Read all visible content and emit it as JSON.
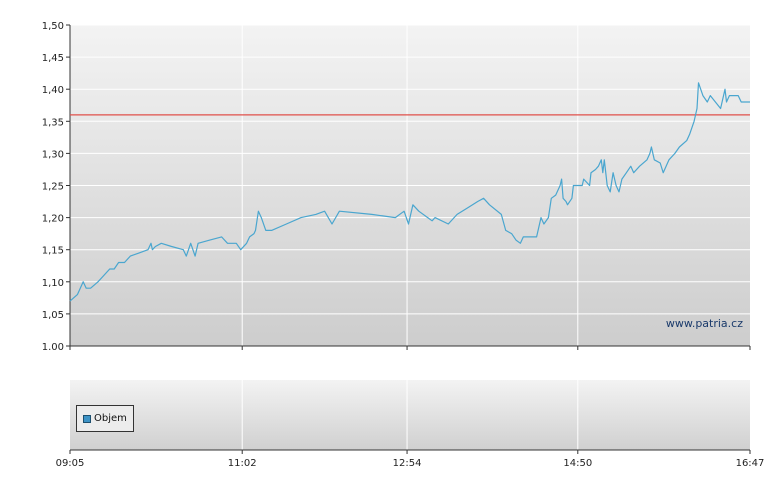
{
  "chart_data": [
    {
      "type": "line",
      "ylim": [
        1.0,
        1.5
      ],
      "yticks": [
        "1.00",
        "1,05",
        "1,10",
        "1,15",
        "1,20",
        "1,25",
        "1,30",
        "1,35",
        "1,40",
        "1,45",
        "1,50"
      ],
      "xticks": [
        "09:05",
        "11:02",
        "12:54",
        "14:50",
        "16:47"
      ],
      "grid": true,
      "watermark": "www.patria.cz",
      "reference_line": {
        "value": 1.36,
        "color": "#e0514a"
      },
      "series": [
        {
          "color": "#4aa6cf",
          "points": [
            [
              "09:05",
              1.07
            ],
            [
              "09:10",
              1.08
            ],
            [
              "09:14",
              1.1
            ],
            [
              "09:16",
              1.09
            ],
            [
              "09:19",
              1.09
            ],
            [
              "09:24",
              1.1
            ],
            [
              "09:28",
              1.11
            ],
            [
              "09:32",
              1.12
            ],
            [
              "09:35",
              1.12
            ],
            [
              "09:38",
              1.13
            ],
            [
              "09:42",
              1.13
            ],
            [
              "09:46",
              1.14
            ],
            [
              "09:52",
              1.145
            ],
            [
              "09:58",
              1.15
            ],
            [
              "10:00",
              1.16
            ],
            [
              "10:01",
              1.15
            ],
            [
              "10:03",
              1.155
            ],
            [
              "10:07",
              1.16
            ],
            [
              "10:14",
              1.155
            ],
            [
              "10:22",
              1.15
            ],
            [
              "10:24",
              1.14
            ],
            [
              "10:27",
              1.16
            ],
            [
              "10:30",
              1.14
            ],
            [
              "10:32",
              1.16
            ],
            [
              "10:40",
              1.165
            ],
            [
              "10:48",
              1.17
            ],
            [
              "10:52",
              1.16
            ],
            [
              "10:58",
              1.16
            ],
            [
              "11:01",
              1.15
            ],
            [
              "11:05",
              1.16
            ],
            [
              "11:07",
              1.17
            ],
            [
              "11:10",
              1.175
            ],
            [
              "11:11",
              1.18
            ],
            [
              "11:13",
              1.21
            ],
            [
              "11:15",
              1.2
            ],
            [
              "11:18",
              1.18
            ],
            [
              "11:22",
              1.18
            ],
            [
              "11:32",
              1.19
            ],
            [
              "11:42",
              1.2
            ],
            [
              "11:52",
              1.205
            ],
            [
              "11:58",
              1.21
            ],
            [
              "12:03",
              1.19
            ],
            [
              "12:08",
              1.21
            ],
            [
              "12:30",
              1.205
            ],
            [
              "12:46",
              1.2
            ],
            [
              "12:52",
              1.21
            ],
            [
              "12:55",
              1.19
            ],
            [
              "12:58",
              1.22
            ],
            [
              "13:02",
              1.21
            ],
            [
              "13:08",
              1.2
            ],
            [
              "13:11",
              1.195
            ],
            [
              "13:13",
              1.2
            ],
            [
              "13:22",
              1.19
            ],
            [
              "13:28",
              1.205
            ],
            [
              "13:35",
              1.215
            ],
            [
              "13:42",
              1.225
            ],
            [
              "13:46",
              1.23
            ],
            [
              "13:50",
              1.22
            ],
            [
              "13:58",
              1.205
            ],
            [
              "14:01",
              1.18
            ],
            [
              "14:05",
              1.175
            ],
            [
              "14:08",
              1.165
            ],
            [
              "14:11",
              1.16
            ],
            [
              "14:13",
              1.17
            ],
            [
              "14:22",
              1.17
            ],
            [
              "14:25",
              1.2
            ],
            [
              "14:27",
              1.19
            ],
            [
              "14:30",
              1.2
            ],
            [
              "14:32",
              1.23
            ],
            [
              "14:35",
              1.235
            ],
            [
              "14:38",
              1.25
            ],
            [
              "14:39",
              1.26
            ],
            [
              "14:40",
              1.23
            ],
            [
              "14:42",
              1.225
            ],
            [
              "14:43",
              1.22
            ],
            [
              "14:46",
              1.23
            ],
            [
              "14:47",
              1.25
            ],
            [
              "14:53",
              1.25
            ],
            [
              "14:54",
              1.26
            ],
            [
              "14:58",
              1.25
            ],
            [
              "14:59",
              1.27
            ],
            [
              "15:02",
              1.275
            ],
            [
              "15:04",
              1.28
            ],
            [
              "15:06",
              1.29
            ],
            [
              "15:07",
              1.27
            ],
            [
              "15:08",
              1.29
            ],
            [
              "15:10",
              1.25
            ],
            [
              "15:12",
              1.24
            ],
            [
              "15:14",
              1.27
            ],
            [
              "15:16",
              1.25
            ],
            [
              "15:18",
              1.24
            ],
            [
              "15:20",
              1.26
            ],
            [
              "15:23",
              1.27
            ],
            [
              "15:26",
              1.28
            ],
            [
              "15:28",
              1.27
            ],
            [
              "15:32",
              1.28
            ],
            [
              "15:37",
              1.29
            ],
            [
              "15:39",
              1.3
            ],
            [
              "15:40",
              1.31
            ],
            [
              "15:42",
              1.29
            ],
            [
              "15:46",
              1.285
            ],
            [
              "15:48",
              1.27
            ],
            [
              "15:50",
              1.28
            ],
            [
              "15:52",
              1.29
            ],
            [
              "15:56",
              1.3
            ],
            [
              "15:59",
              1.31
            ],
            [
              "16:04",
              1.32
            ],
            [
              "16:06",
              1.33
            ],
            [
              "16:09",
              1.35
            ],
            [
              "16:11",
              1.37
            ],
            [
              "16:12",
              1.41
            ],
            [
              "16:15",
              1.39
            ],
            [
              "16:18",
              1.38
            ],
            [
              "16:20",
              1.39
            ],
            [
              "16:27",
              1.37
            ],
            [
              "16:30",
              1.4
            ],
            [
              "16:31",
              1.38
            ],
            [
              "16:33",
              1.39
            ],
            [
              "16:39",
              1.39
            ],
            [
              "16:41",
              1.38
            ],
            [
              "16:47",
              1.38
            ]
          ]
        }
      ]
    },
    {
      "type": "bar",
      "legend": [
        {
          "label": "Objem",
          "color": "#3d93c6"
        }
      ],
      "legend_placement": "bottom-left",
      "series": []
    }
  ]
}
